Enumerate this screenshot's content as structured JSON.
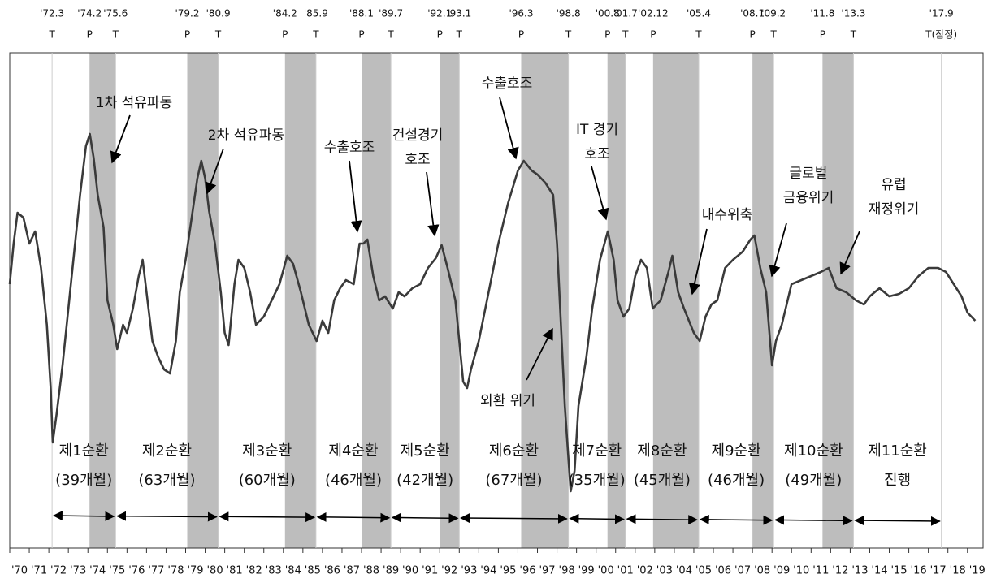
{
  "chart_data": {
    "type": "line",
    "color": "#3a3a3a",
    "shade_color": "#bdbdbd",
    "xlim": [
      1970,
      2019.8
    ],
    "ylim": [
      0,
      610
    ],
    "xticks": [
      {
        "value": 1970,
        "label": "'70"
      },
      {
        "value": 1971,
        "label": "'71"
      },
      {
        "value": 1972,
        "label": "'72"
      },
      {
        "value": 1973,
        "label": "'73"
      },
      {
        "value": 1974,
        "label": "'74"
      },
      {
        "value": 1975,
        "label": "'75"
      },
      {
        "value": 1976,
        "label": "'76"
      },
      {
        "value": 1977,
        "label": "'77"
      },
      {
        "value": 1978,
        "label": "'78"
      },
      {
        "value": 1979,
        "label": "'79"
      },
      {
        "value": 1980,
        "label": "'80"
      },
      {
        "value": 1981,
        "label": "'81"
      },
      {
        "value": 1982,
        "label": "'82"
      },
      {
        "value": 1983,
        "label": "'83"
      },
      {
        "value": 1984,
        "label": "'84"
      },
      {
        "value": 1985,
        "label": "'85"
      },
      {
        "value": 1986,
        "label": "'86"
      },
      {
        "value": 1987,
        "label": "'87"
      },
      {
        "value": 1988,
        "label": "'88"
      },
      {
        "value": 1989,
        "label": "'89"
      },
      {
        "value": 1990,
        "label": "'90"
      },
      {
        "value": 1991,
        "label": "'91"
      },
      {
        "value": 1992,
        "label": "'92"
      },
      {
        "value": 1993,
        "label": "'93"
      },
      {
        "value": 1994,
        "label": "'94"
      },
      {
        "value": 1995,
        "label": "'95"
      },
      {
        "value": 1996,
        "label": "'96"
      },
      {
        "value": 1997,
        "label": "'97"
      },
      {
        "value": 1998,
        "label": "'98"
      },
      {
        "value": 1999,
        "label": "'99"
      },
      {
        "value": 2000,
        "label": "'00"
      },
      {
        "value": 2001,
        "label": "'01"
      },
      {
        "value": 2002,
        "label": "'02"
      },
      {
        "value": 2003,
        "label": "'03"
      },
      {
        "value": 2004,
        "label": "'04"
      },
      {
        "value": 2005,
        "label": "'05"
      },
      {
        "value": 2006,
        "label": "'06"
      },
      {
        "value": 2007,
        "label": "'07"
      },
      {
        "value": 2008,
        "label": "'08"
      },
      {
        "value": 2009,
        "label": "'09"
      },
      {
        "value": 2010,
        "label": "'10"
      },
      {
        "value": 2011,
        "label": "'11"
      },
      {
        "value": 2012,
        "label": "'12"
      },
      {
        "value": 2013,
        "label": "'13"
      },
      {
        "value": 2014,
        "label": "'14"
      },
      {
        "value": 2015,
        "label": "'15"
      },
      {
        "value": 2016,
        "label": "'16"
      },
      {
        "value": 2017,
        "label": "'17"
      },
      {
        "value": 2018,
        "label": "'18"
      },
      {
        "value": 2019,
        "label": "'19"
      }
    ],
    "turning_points": [
      {
        "date": "'72.3",
        "kind": "T"
      },
      {
        "date": "'74.2",
        "kind": "P"
      },
      {
        "date": "'75.6",
        "kind": "T"
      },
      {
        "date": "'79.2",
        "kind": "P"
      },
      {
        "date": "'80.9",
        "kind": "T"
      },
      {
        "date": "'84.2",
        "kind": "P"
      },
      {
        "date": "'85.9",
        "kind": "T"
      },
      {
        "date": "'88.1",
        "kind": "P"
      },
      {
        "date": "'89.7",
        "kind": "T"
      },
      {
        "date": "'92.1",
        "kind": "P"
      },
      {
        "date": "'93.1",
        "kind": "T"
      },
      {
        "date": "'96.3",
        "kind": "P"
      },
      {
        "date": "'98.8",
        "kind": "T"
      },
      {
        "date": "'00.8",
        "kind": "P"
      },
      {
        "date": "'01.7",
        "kind": "T"
      },
      {
        "date": "'02.12",
        "kind": "P"
      },
      {
        "date": "'05.4",
        "kind": "T"
      },
      {
        "date": "'08.1",
        "kind": "P"
      },
      {
        "date": "'09.2",
        "kind": "T"
      },
      {
        "date": "'11.8",
        "kind": "P"
      },
      {
        "date": "'13.3",
        "kind": "T"
      },
      {
        "date": "'17.9",
        "kind": "T(잠정)"
      }
    ],
    "cycles": [
      {
        "name": "제1순환",
        "duration": "(39개월)"
      },
      {
        "name": "제2순환",
        "duration": "(63개월)"
      },
      {
        "name": "제3순환",
        "duration": "(60개월)"
      },
      {
        "name": "제4순환",
        "duration": "(46개월)"
      },
      {
        "name": "제5순환",
        "duration": "(42개월)"
      },
      {
        "name": "제6순환",
        "duration": "(67개월)"
      },
      {
        "name": "제7순환",
        "duration": "(35개월)"
      },
      {
        "name": "제8순환",
        "duration": "(45개월)"
      },
      {
        "name": "제9순환",
        "duration": "(46개월)"
      },
      {
        "name": "제10순환",
        "duration": "(49개월)"
      },
      {
        "name": "제11순환",
        "duration": "진행"
      }
    ],
    "annotations": [
      {
        "lines": [
          "1차 석유파동"
        ]
      },
      {
        "lines": [
          "2차 석유파동"
        ]
      },
      {
        "lines": [
          "수출호조"
        ]
      },
      {
        "lines": [
          "건설경기",
          "호조"
        ]
      },
      {
        "lines": [
          "수출호조"
        ]
      },
      {
        "lines": [
          "IT 경기",
          "호조"
        ]
      },
      {
        "lines": [
          "내수위축"
        ]
      },
      {
        "lines": [
          "글로벌",
          "금융위기"
        ]
      },
      {
        "lines": [
          "유럽",
          "재정위기"
        ]
      },
      {
        "lines": [
          "외환 위기"
        ]
      }
    ],
    "x": [
      1970.0,
      1970.2,
      1970.4,
      1970.7,
      1971.0,
      1971.3,
      1971.6,
      1971.9,
      1972.1,
      1972.2,
      1972.4,
      1972.7,
      1973.0,
      1973.3,
      1973.6,
      1973.9,
      1974.1,
      1974.3,
      1974.5,
      1974.8,
      1975.0,
      1975.3,
      1975.5,
      1975.8,
      1976.0,
      1976.3,
      1976.6,
      1976.8,
      1977.0,
      1977.3,
      1977.6,
      1977.9,
      1978.2,
      1978.5,
      1978.7,
      1979.0,
      1979.3,
      1979.6,
      1979.8,
      1980.0,
      1980.2,
      1980.5,
      1980.8,
      1981.0,
      1981.2,
      1981.5,
      1981.7,
      1982.0,
      1982.3,
      1982.6,
      1983.0,
      1983.4,
      1983.8,
      1984.2,
      1984.5,
      1984.9,
      1985.3,
      1985.7,
      1986.0,
      1986.3,
      1986.6,
      1986.9,
      1987.2,
      1987.6,
      1987.9,
      1988.1,
      1988.3,
      1988.6,
      1988.9,
      1989.2,
      1989.6,
      1989.9,
      1990.2,
      1990.6,
      1991.0,
      1991.4,
      1991.8,
      1992.1,
      1992.4,
      1992.8,
      1993.0,
      1993.2,
      1993.4,
      1993.6,
      1994.0,
      1994.5,
      1995.0,
      1995.5,
      1996.0,
      1996.3,
      1996.7,
      1997.0,
      1997.4,
      1997.8,
      1998.0,
      1998.2,
      1998.4,
      1998.6,
      1998.7,
      1998.9,
      1999.1,
      1999.5,
      1999.8,
      2000.2,
      2000.6,
      2000.9,
      2001.1,
      2001.4,
      2001.7,
      2002.0,
      2002.3,
      2002.6,
      2002.9,
      2003.3,
      2003.7,
      2003.9,
      2004.2,
      2004.5,
      2005.0,
      2005.3,
      2005.6,
      2005.9,
      2006.2,
      2006.6,
      2007.0,
      2007.5,
      2007.9,
      2008.1,
      2008.4,
      2008.7,
      2009.0,
      2009.2,
      2009.5,
      2010.0,
      2010.5,
      2011.0,
      2011.5,
      2011.9,
      2012.3,
      2012.8,
      2013.3,
      2013.7,
      2014.0,
      2014.5,
      2015.0,
      2015.5,
      2016.0,
      2016.5,
      2017.0,
      2017.5,
      2017.9,
      2018.3,
      2018.7,
      2019.0,
      2019.4
    ],
    "values": [
      325,
      375,
      413,
      407,
      375,
      390,
      345,
      275,
      195,
      130,
      165,
      225,
      295,
      365,
      435,
      495,
      510,
      480,
      435,
      395,
      305,
      275,
      245,
      275,
      265,
      295,
      335,
      355,
      315,
      255,
      235,
      220,
      215,
      255,
      315,
      355,
      405,
      455,
      477,
      455,
      415,
      375,
      315,
      265,
      250,
      325,
      355,
      345,
      315,
      275,
      285,
      305,
      325,
      360,
      350,
      315,
      275,
      255,
      280,
      265,
      305,
      320,
      330,
      325,
      375,
      375,
      380,
      335,
      305,
      310,
      295,
      315,
      310,
      320,
      325,
      345,
      357,
      373,
      345,
      305,
      255,
      205,
      197,
      220,
      255,
      315,
      375,
      425,
      465,
      477,
      465,
      460,
      450,
      435,
      375,
      275,
      175,
      105,
      70,
      95,
      175,
      235,
      295,
      355,
      390,
      355,
      305,
      285,
      295,
      335,
      355,
      345,
      295,
      305,
      340,
      360,
      315,
      295,
      265,
      255,
      285,
      300,
      305,
      345,
      355,
      365,
      380,
      385,
      345,
      315,
      225,
      255,
      275,
      325,
      330,
      335,
      340,
      345,
      320,
      315,
      305,
      300,
      310,
      320,
      310,
      313,
      320,
      335,
      345,
      345,
      340,
      325,
      310,
      290,
      280
    ]
  }
}
